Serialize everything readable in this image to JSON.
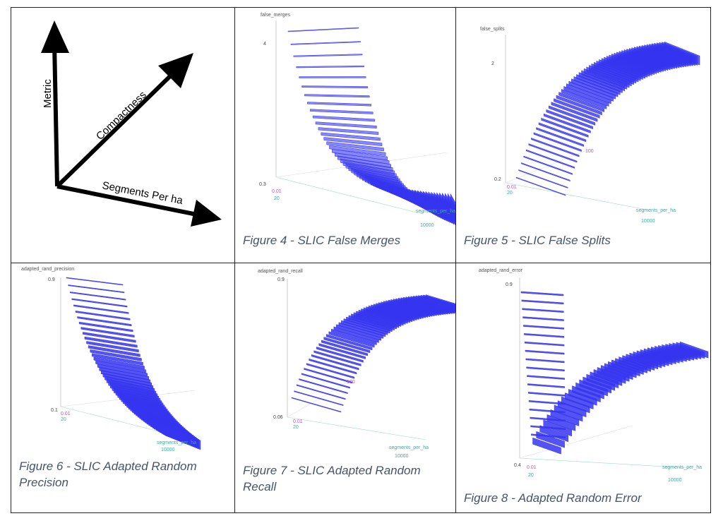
{
  "legend_panel": {
    "metric_label": "Metric",
    "compactness_label": "Compactness",
    "segments_label": "Segments Per ha"
  },
  "figures": [
    {
      "id": "fig4",
      "caption": "Figure 4 - SLIC False Merges",
      "z_axis_label": "false_merges",
      "z_top_tick": "4",
      "z_bottom_tick": "0.3",
      "compactness_tick": "0.01",
      "segments_ticks": [
        "20",
        "10000"
      ],
      "x_axis_label": "segments_per_ha",
      "mid_tick": ""
    },
    {
      "id": "fig5",
      "caption": "Figure 5 - SLIC False Splits",
      "z_axis_label": "false_splits",
      "z_top_tick": "2",
      "z_bottom_tick": "0.2",
      "compactness_tick": "0.01",
      "segments_ticks": [
        "20",
        "10000"
      ],
      "x_axis_label": "segments_per_ha",
      "mid_tick": "100"
    },
    {
      "id": "fig6",
      "caption": "Figure 6 - SLIC Adapted Random Precision",
      "z_axis_label": "adapted_rand_precision",
      "z_top_tick": "0.9",
      "z_bottom_tick": "0.1",
      "compactness_tick": "0.01",
      "segments_ticks": [
        "20",
        "10000"
      ],
      "x_axis_label": "segments_per_ha",
      "mid_tick": ""
    },
    {
      "id": "fig7",
      "caption": "Figure 7 - SLIC Adapted Random Recall",
      "z_axis_label": "adapted_rand_recall",
      "z_top_tick": "0.9",
      "z_bottom_tick": "0.06",
      "compactness_tick": "0.01",
      "segments_ticks": [
        "20",
        "10000"
      ],
      "x_axis_label": "segments_per_ha",
      "mid_tick": "100"
    },
    {
      "id": "fig8",
      "caption": "Figure 8 - Adapted Random Error",
      "z_axis_label": "adapted_rand_error",
      "z_top_tick": "0.9",
      "z_bottom_tick": "0.4",
      "compactness_tick": "0.01",
      "segments_ticks": [
        "20",
        "10000"
      ],
      "x_axis_label": "segments_per_ha",
      "mid_tick": ""
    }
  ],
  "colors": {
    "surface": "#3535f0",
    "surface_light": "#7a7af8",
    "z_axis": "#999999",
    "compactness_axis": "#c050c0",
    "segments_axis": "#40a8a0",
    "caption": "#44546a"
  }
}
